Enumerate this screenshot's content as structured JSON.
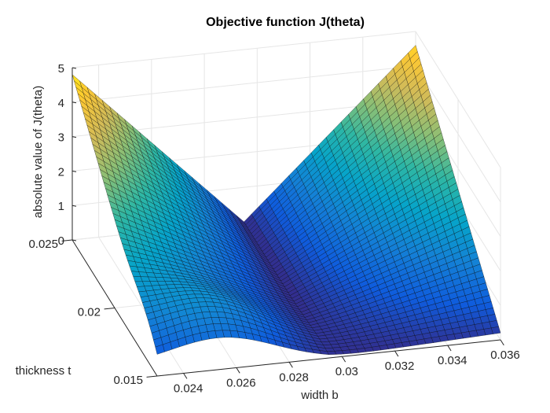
{
  "chart_data": {
    "type": "surface",
    "title": "Objective function J(theta)",
    "xlabel": "width b",
    "ylabel": "thickness t",
    "zlabel": "absolute value of J(theta)",
    "xlim": [
      0.023,
      0.036
    ],
    "ylim": [
      0.015,
      0.025
    ],
    "zlim": [
      0,
      5
    ],
    "xticks": [
      "0.024",
      "0.026",
      "0.028",
      "0.03",
      "0.032",
      "0.034",
      "0.036"
    ],
    "yticks": [
      "0.015",
      "0.02",
      "0.025"
    ],
    "zticks": [
      "0",
      "1",
      "2",
      "3",
      "4",
      "5"
    ],
    "grid": true,
    "colormap": "parula",
    "colormap_colors": [
      "#352a87",
      "#0f5cdd",
      "#1481d6",
      "#06a4ca",
      "#2eb7a4",
      "#87bf77",
      "#d1bb59",
      "#fec832",
      "#f9fb0e"
    ],
    "edge_color": "#000000",
    "corner_points": [
      {
        "b": 0.023,
        "t": 0.025,
        "J": 4.8
      },
      {
        "b": 0.036,
        "t": 0.025,
        "J": 4.6
      },
      {
        "b": 0.023,
        "t": 0.015,
        "J": 0.3
      },
      {
        "b": 0.036,
        "t": 0.015,
        "J": 0.2
      }
    ],
    "valley_points": [
      {
        "b": 0.0295,
        "t": 0.015,
        "J": 0.0
      },
      {
        "b": 0.0295,
        "t": 0.025,
        "J": 0.0
      }
    ],
    "ridge_secondary_peak": {
      "b": 0.0255,
      "t": 0.016,
      "J": 1.0
    }
  }
}
